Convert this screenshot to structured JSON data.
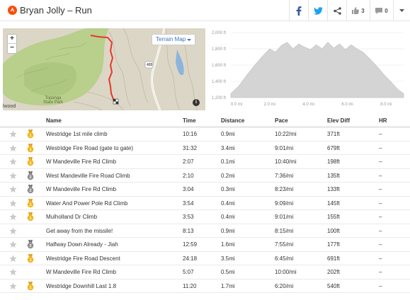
{
  "header": {
    "title": "Bryan Jolly – Run",
    "kudos_count": "3",
    "comment_count": "0",
    "colors": {
      "brand": "#fc4c02",
      "facebook": "#3b5998",
      "twitter": "#1da1f2"
    }
  },
  "map": {
    "terrain_label": "Terrain Map",
    "place_label_left": "lwood",
    "place_label_park": "Topanga State Park",
    "highway_label": "405",
    "zoom_in": "+",
    "zoom_out": "−",
    "info": "i"
  },
  "elevation": {
    "y_ticks": [
      "2,000 ft",
      "1,800 ft",
      "1,600 ft",
      "1,400 ft",
      "1,200 ft"
    ],
    "x_ticks": [
      "0.0 mi",
      "2.0 mi",
      "4.0 mi",
      "6.0 mi",
      "8.0 mi"
    ]
  },
  "chart_data": {
    "type": "area",
    "xlabel": "",
    "ylabel": "",
    "ylim": [
      1200,
      2000
    ],
    "xlim": [
      0,
      8.9
    ],
    "x": [
      0,
      0.4,
      0.8,
      1.2,
      1.6,
      2.0,
      2.3,
      2.6,
      2.9,
      3.2,
      3.5,
      3.8,
      4.1,
      4.4,
      4.7,
      5.0,
      5.3,
      5.6,
      5.9,
      6.2,
      6.5,
      6.8,
      7.1,
      7.5,
      7.9,
      8.3,
      8.6,
      8.9
    ],
    "values": [
      1250,
      1340,
      1470,
      1590,
      1700,
      1800,
      1760,
      1840,
      1880,
      1800,
      1860,
      1820,
      1790,
      1850,
      1800,
      1880,
      1810,
      1860,
      1790,
      1850,
      1800,
      1760,
      1690,
      1590,
      1480,
      1380,
      1300,
      1250
    ]
  },
  "table": {
    "headers": {
      "name": "Name",
      "time": "Time",
      "distance": "Distance",
      "pace": "Pace",
      "elev": "Elev Diff",
      "hr": "HR"
    },
    "rows": [
      {
        "medal": "gold",
        "medal_num": "1",
        "name": "Westridge 1st mile climb",
        "time": "10:16",
        "distance": "0.9mi",
        "pace": "10:22/mi",
        "elev": "371ft",
        "hr": "–"
      },
      {
        "medal": "gold",
        "medal_num": "1",
        "name": "Westridge Fire Road (gate to gate)",
        "time": "31:32",
        "distance": "3.4mi",
        "pace": "9:01/mi",
        "elev": "679ft",
        "hr": "–"
      },
      {
        "medal": "gold",
        "medal_num": "1",
        "name": "W Mandeville Fire Rd Climb",
        "time": "2:07",
        "distance": "0.1mi",
        "pace": "10:40/mi",
        "elev": "198ft",
        "hr": "–"
      },
      {
        "medal": "silver",
        "medal_num": "2",
        "name": "West Mandeville Fire Road Climb",
        "time": "2:10",
        "distance": "0.2mi",
        "pace": "7:36/mi",
        "elev": "135ft",
        "hr": "–"
      },
      {
        "medal": "silver",
        "medal_num": "2",
        "name": "W Mandeville Fire Rd Climb",
        "time": "3:04",
        "distance": "0.3mi",
        "pace": "8:23/mi",
        "elev": "133ft",
        "hr": "–"
      },
      {
        "medal": "gold",
        "medal_num": "1",
        "name": "Water And Power Pole Rd Climb",
        "time": "3:54",
        "distance": "0.4mi",
        "pace": "9:09/mi",
        "elev": "145ft",
        "hr": "–"
      },
      {
        "medal": "gold",
        "medal_num": "1",
        "name": "Mulholland Dr Climb",
        "time": "3:53",
        "distance": "0.4mi",
        "pace": "9:01/mi",
        "elev": "155ft",
        "hr": "–"
      },
      {
        "medal": "none",
        "medal_num": "",
        "name": "Get away from the missile!",
        "time": "8:13",
        "distance": "0.9mi",
        "pace": "8:15/mi",
        "elev": "100ft",
        "hr": "–"
      },
      {
        "medal": "silver",
        "medal_num": "2",
        "name": "Halfway Down Already - Jiah",
        "time": "12:59",
        "distance": "1.6mi",
        "pace": "7:55/mi",
        "elev": "177ft",
        "hr": "–"
      },
      {
        "medal": "gold",
        "medal_num": "1",
        "name": "Westridge Fire Road Descent",
        "time": "24:18",
        "distance": "3.5mi",
        "pace": "6:45/mi",
        "elev": "691ft",
        "hr": "–"
      },
      {
        "medal": "none",
        "medal_num": "",
        "name": "W Mandeville Fire Rd Climb",
        "time": "5:07",
        "distance": "0.5mi",
        "pace": "10:00/mi",
        "elev": "202ft",
        "hr": "–"
      },
      {
        "medal": "gold",
        "medal_num": "1",
        "name": "Westridge Downhill Last 1.8",
        "time": "11:20",
        "distance": "1.7mi",
        "pace": "6:20/mi",
        "elev": "540ft",
        "hr": "–"
      }
    ]
  }
}
